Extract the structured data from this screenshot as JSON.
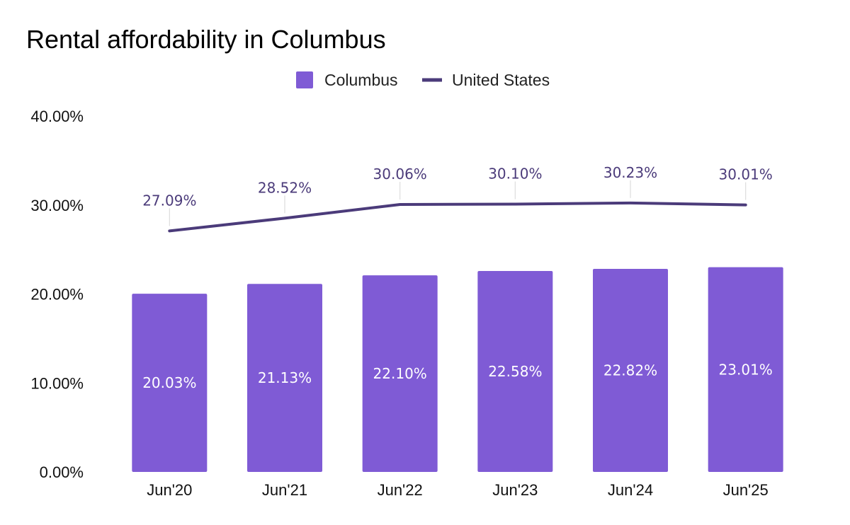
{
  "chart_data": {
    "type": "bar",
    "title": "Rental affordability in Columbus",
    "categories": [
      "Jun'20",
      "Jun'21",
      "Jun'22",
      "Jun'23",
      "Jun'24",
      "Jun'25"
    ],
    "series": [
      {
        "name": "Columbus",
        "kind": "bar",
        "color": "#7f5bd5",
        "values": [
          20.03,
          21.13,
          22.1,
          22.58,
          22.82,
          23.01
        ],
        "labels": [
          "20.03%",
          "21.13%",
          "22.10%",
          "22.58%",
          "22.82%",
          "23.01%"
        ]
      },
      {
        "name": "United States",
        "kind": "line",
        "color": "#4b3b7a",
        "values": [
          27.09,
          28.52,
          30.06,
          30.1,
          30.23,
          30.01
        ],
        "labels": [
          "27.09%",
          "28.52%",
          "30.06%",
          "30.10%",
          "30.23%",
          "30.01%"
        ]
      }
    ],
    "ylim": [
      0,
      40
    ],
    "yticks": [
      0,
      10,
      20,
      30,
      40
    ],
    "ytick_labels": [
      "0.00%",
      "10.00%",
      "20.00%",
      "30.00%",
      "40.00%"
    ],
    "xlabel": "",
    "ylabel": "",
    "legend_position": "top-center",
    "grid": false
  }
}
